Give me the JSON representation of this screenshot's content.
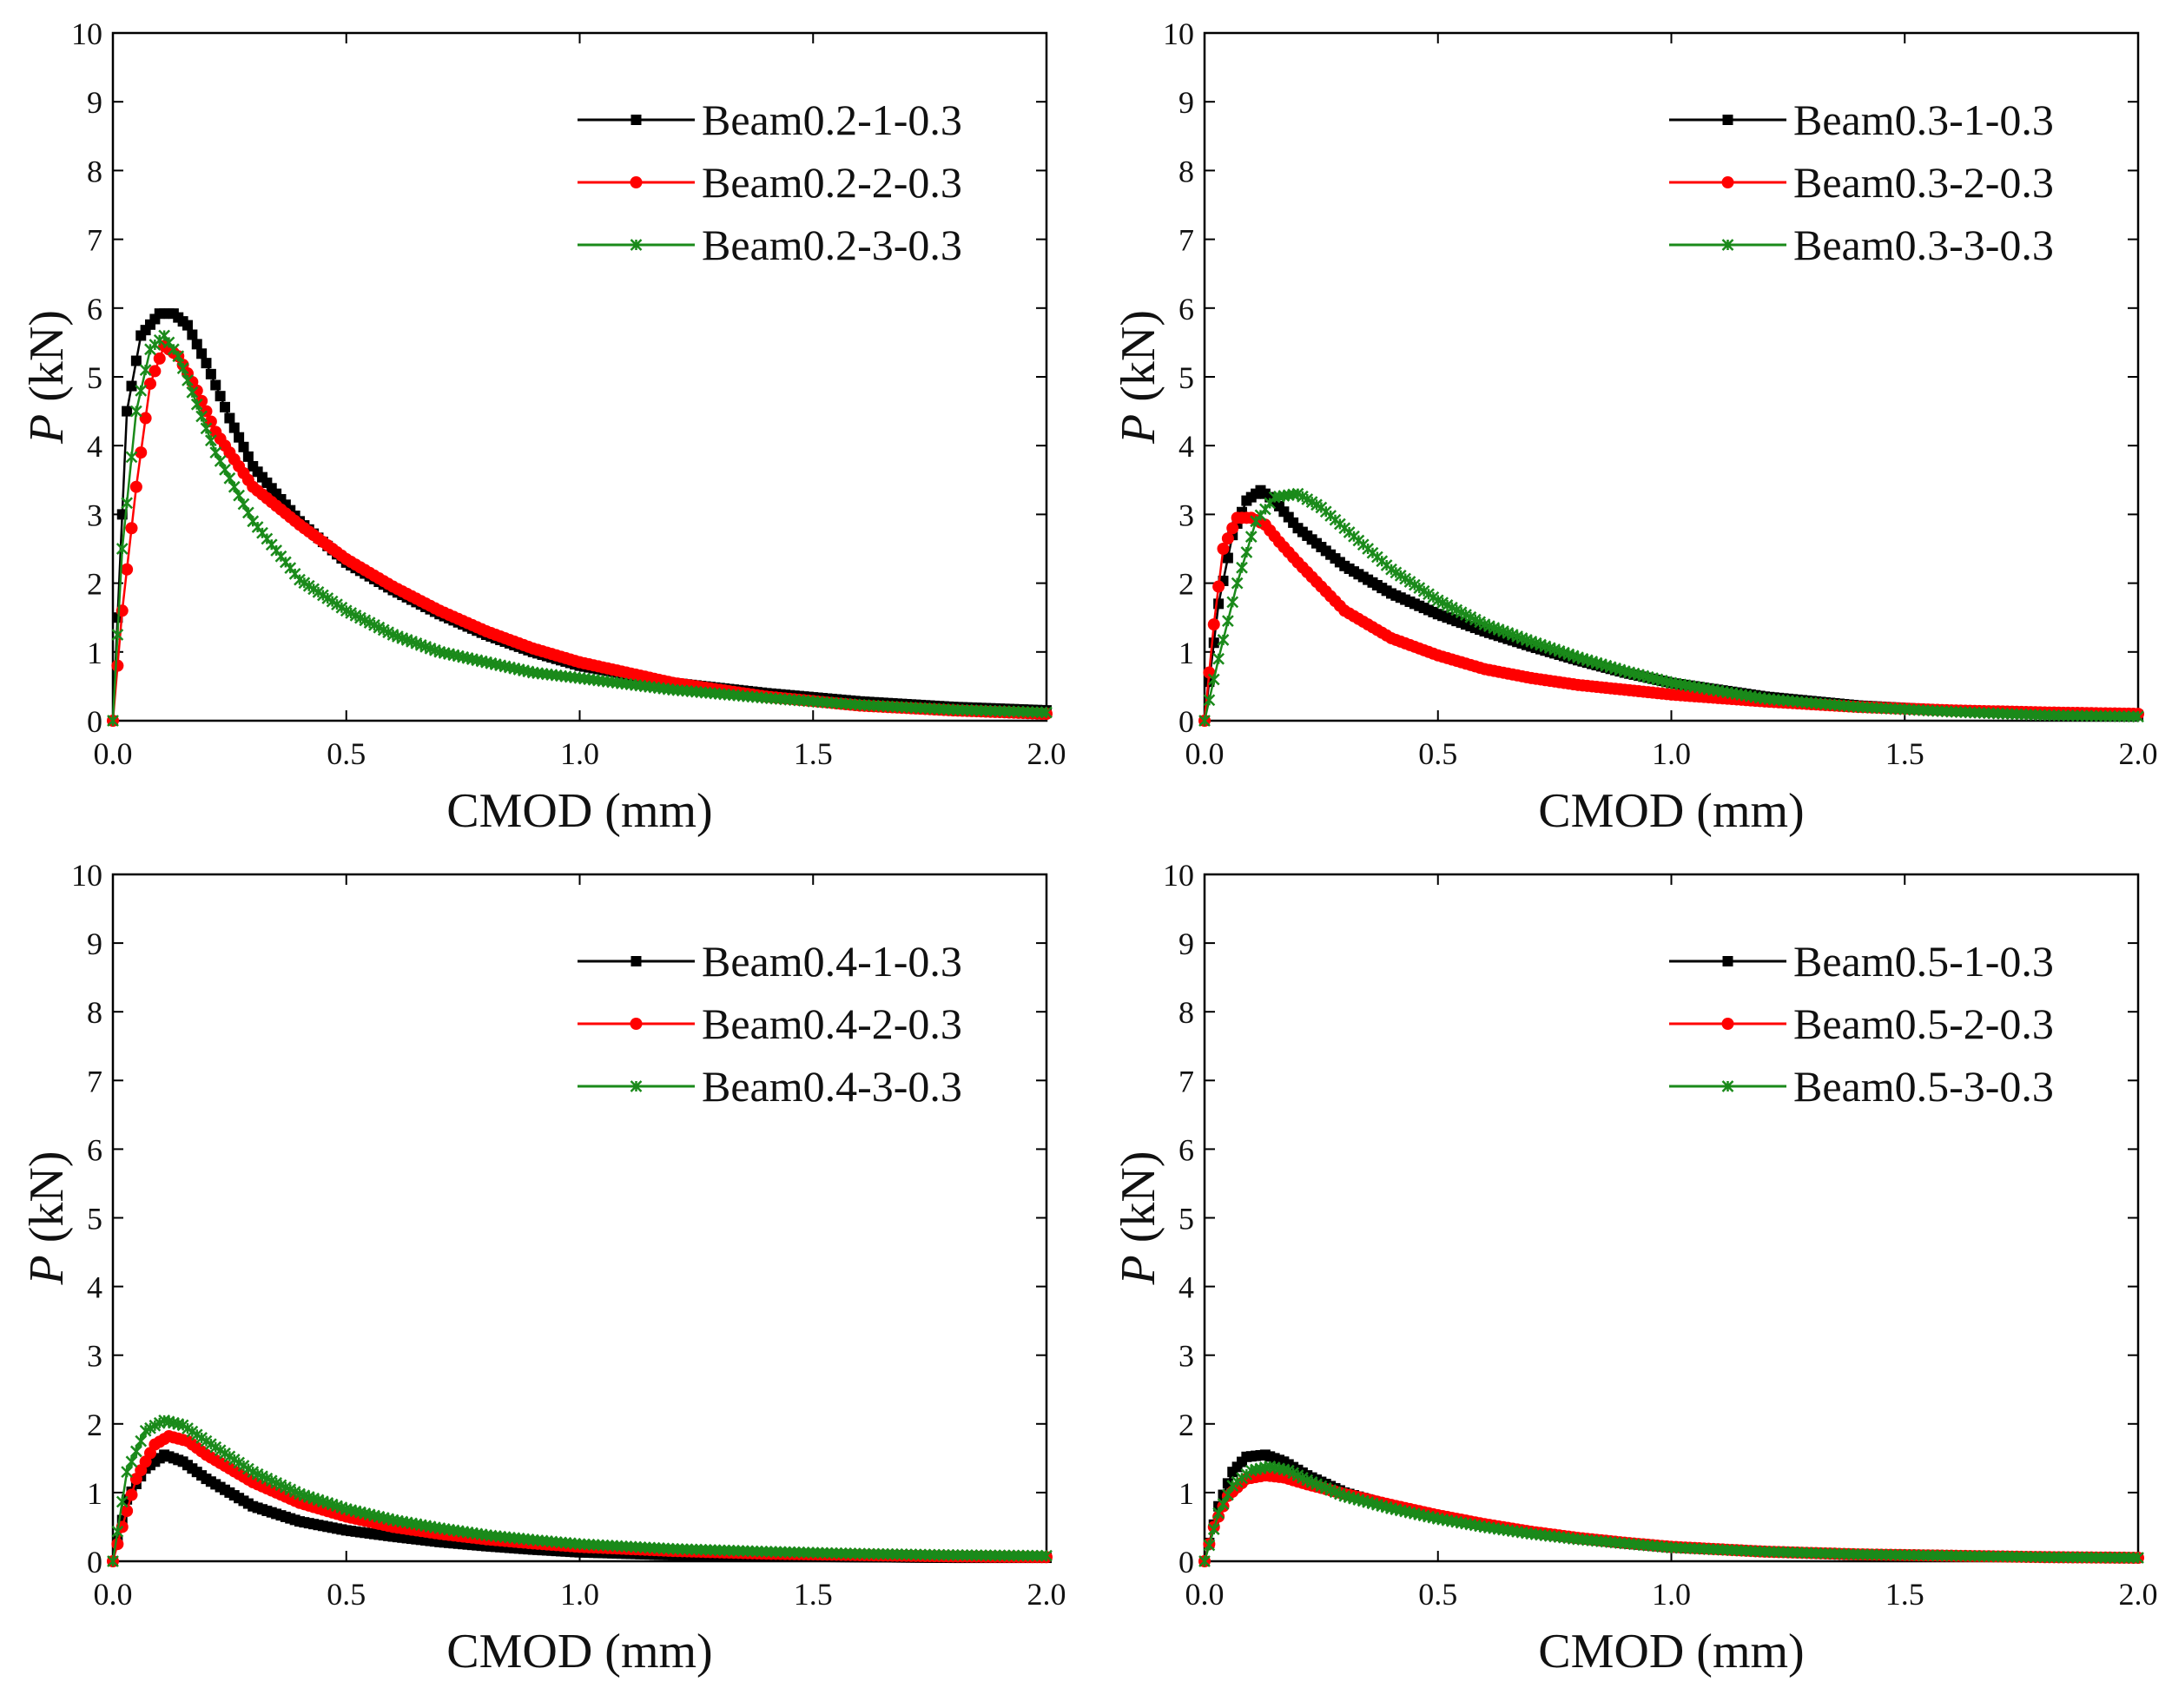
{
  "colors": {
    "black": "#000000",
    "red": "#ff0000",
    "green": "#1a8a1a"
  },
  "chart_data": [
    {
      "type": "line",
      "xlabel": "CMOD (mm)",
      "ylabel_italic": "P",
      "ylabel_unit": " (kN)",
      "xlim": [
        0,
        2.0
      ],
      "ylim": [
        0,
        10
      ],
      "xticks": [
        "0.0",
        "0.5",
        "1.0",
        "1.5",
        "2.0"
      ],
      "yticks": [
        "0",
        "1",
        "2",
        "3",
        "4",
        "5",
        "6",
        "7",
        "8",
        "9",
        "10"
      ],
      "legend_position": "top-right",
      "series": [
        {
          "name": "Beam0.2-1-0.3",
          "color": "#000000",
          "marker": "square",
          "x": [
            0,
            0.03,
            0.06,
            0.1,
            0.13,
            0.16,
            0.2,
            0.25,
            0.3,
            0.4,
            0.5,
            0.6,
            0.7,
            0.8,
            0.9,
            1.0,
            1.2,
            1.4,
            1.6,
            1.8,
            2.0
          ],
          "y": [
            0,
            4.5,
            5.6,
            5.92,
            5.92,
            5.75,
            5.2,
            4.4,
            3.7,
            2.9,
            2.3,
            1.9,
            1.55,
            1.25,
            1.0,
            0.8,
            0.55,
            0.4,
            0.28,
            0.2,
            0.15
          ]
        },
        {
          "name": "Beam0.2-2-0.3",
          "color": "#ff0000",
          "marker": "circle",
          "x": [
            0,
            0.02,
            0.05,
            0.08,
            0.11,
            0.14,
            0.18,
            0.22,
            0.3,
            0.4,
            0.5,
            0.6,
            0.7,
            0.8,
            0.9,
            1.0,
            1.2,
            1.4,
            1.6,
            1.8,
            2.0
          ],
          "y": [
            0,
            1.6,
            3.4,
            4.9,
            5.45,
            5.3,
            4.8,
            4.2,
            3.4,
            2.85,
            2.35,
            1.95,
            1.6,
            1.3,
            1.05,
            0.85,
            0.55,
            0.35,
            0.22,
            0.15,
            0.1
          ]
        },
        {
          "name": "Beam0.2-3-0.3",
          "color": "#1a8a1a",
          "marker": "cross",
          "x": [
            0,
            0.02,
            0.05,
            0.08,
            0.11,
            0.14,
            0.18,
            0.22,
            0.3,
            0.4,
            0.5,
            0.6,
            0.7,
            0.8,
            0.9,
            1.0,
            1.2,
            1.4,
            1.6,
            1.8,
            2.0
          ],
          "y": [
            0,
            2.5,
            4.5,
            5.4,
            5.6,
            5.3,
            4.6,
            3.9,
            2.9,
            2.05,
            1.6,
            1.25,
            1.0,
            0.85,
            0.7,
            0.62,
            0.45,
            0.33,
            0.23,
            0.16,
            0.12
          ]
        }
      ]
    },
    {
      "type": "line",
      "xlabel": "CMOD (mm)",
      "ylabel_italic": "P",
      "ylabel_unit": " (kN)",
      "xlim": [
        0,
        2.0
      ],
      "ylim": [
        0,
        10
      ],
      "xticks": [
        "0.0",
        "0.5",
        "1.0",
        "1.5",
        "2.0"
      ],
      "yticks": [
        "0",
        "1",
        "2",
        "3",
        "4",
        "5",
        "6",
        "7",
        "8",
        "9",
        "10"
      ],
      "legend_position": "top-right",
      "series": [
        {
          "name": "Beam0.3-1-0.3",
          "color": "#000000",
          "marker": "square",
          "x": [
            0,
            0.03,
            0.06,
            0.09,
            0.12,
            0.15,
            0.2,
            0.3,
            0.4,
            0.5,
            0.6,
            0.7,
            0.8,
            0.9,
            1.0,
            1.2,
            1.4,
            1.6,
            1.8,
            2.0
          ],
          "y": [
            0,
            1.7,
            2.7,
            3.2,
            3.35,
            3.2,
            2.8,
            2.25,
            1.85,
            1.55,
            1.3,
            1.08,
            0.88,
            0.7,
            0.55,
            0.35,
            0.22,
            0.15,
            0.1,
            0.08
          ]
        },
        {
          "name": "Beam0.3-2-0.3",
          "color": "#ff0000",
          "marker": "circle",
          "x": [
            0,
            0.02,
            0.04,
            0.07,
            0.1,
            0.13,
            0.16,
            0.2,
            0.3,
            0.4,
            0.5,
            0.6,
            0.7,
            0.8,
            0.9,
            1.0,
            1.2,
            1.4,
            1.6,
            1.8,
            2.0
          ],
          "y": [
            0,
            1.4,
            2.5,
            2.95,
            2.95,
            2.85,
            2.6,
            2.3,
            1.6,
            1.2,
            0.95,
            0.75,
            0.62,
            0.52,
            0.45,
            0.38,
            0.28,
            0.2,
            0.15,
            0.12,
            0.1
          ]
        },
        {
          "name": "Beam0.3-3-0.3",
          "color": "#1a8a1a",
          "marker": "cross",
          "x": [
            0,
            0.03,
            0.07,
            0.11,
            0.15,
            0.2,
            0.25,
            0.3,
            0.4,
            0.5,
            0.6,
            0.7,
            0.8,
            0.9,
            1.0,
            1.2,
            1.4,
            1.6,
            1.8,
            2.0
          ],
          "y": [
            0,
            0.9,
            2.0,
            2.9,
            3.25,
            3.3,
            3.1,
            2.8,
            2.2,
            1.75,
            1.4,
            1.15,
            0.92,
            0.72,
            0.55,
            0.32,
            0.2,
            0.13,
            0.08,
            0.06
          ]
        }
      ]
    },
    {
      "type": "line",
      "xlabel": "CMOD (mm)",
      "ylabel_italic": "P",
      "ylabel_unit": " (kN)",
      "xlim": [
        0,
        2.0
      ],
      "ylim": [
        0,
        10
      ],
      "xticks": [
        "0.0",
        "0.5",
        "1.0",
        "1.5",
        "2.0"
      ],
      "yticks": [
        "0",
        "1",
        "2",
        "3",
        "4",
        "5",
        "6",
        "7",
        "8",
        "9",
        "10"
      ],
      "legend_position": "top-right",
      "series": [
        {
          "name": "Beam0.4-1-0.3",
          "color": "#000000",
          "marker": "square",
          "x": [
            0,
            0.03,
            0.07,
            0.11,
            0.15,
            0.2,
            0.3,
            0.4,
            0.5,
            0.6,
            0.7,
            0.8,
            0.9,
            1.0,
            1.2,
            1.4,
            1.6,
            1.8,
            2.0
          ],
          "y": [
            0,
            0.9,
            1.35,
            1.55,
            1.45,
            1.2,
            0.8,
            0.58,
            0.45,
            0.36,
            0.28,
            0.22,
            0.17,
            0.13,
            0.09,
            0.07,
            0.06,
            0.05,
            0.05
          ]
        },
        {
          "name": "Beam0.4-2-0.3",
          "color": "#ff0000",
          "marker": "circle",
          "x": [
            0,
            0.02,
            0.05,
            0.09,
            0.12,
            0.16,
            0.2,
            0.3,
            0.4,
            0.5,
            0.6,
            0.7,
            0.8,
            0.9,
            1.0,
            1.2,
            1.4,
            1.6,
            1.8,
            2.0
          ],
          "y": [
            0,
            0.5,
            1.2,
            1.7,
            1.82,
            1.75,
            1.55,
            1.15,
            0.85,
            0.65,
            0.5,
            0.4,
            0.32,
            0.26,
            0.21,
            0.15,
            0.11,
            0.09,
            0.07,
            0.06
          ]
        },
        {
          "name": "Beam0.4-3-0.3",
          "color": "#1a8a1a",
          "marker": "cross",
          "x": [
            0,
            0.03,
            0.07,
            0.11,
            0.15,
            0.2,
            0.3,
            0.4,
            0.5,
            0.6,
            0.7,
            0.8,
            0.9,
            1.0,
            1.2,
            1.4,
            1.6,
            1.8,
            2.0
          ],
          "y": [
            0,
            1.3,
            1.9,
            2.05,
            1.98,
            1.75,
            1.3,
            0.98,
            0.76,
            0.6,
            0.48,
            0.38,
            0.31,
            0.25,
            0.18,
            0.14,
            0.11,
            0.09,
            0.08
          ]
        }
      ]
    },
    {
      "type": "line",
      "xlabel": "CMOD (mm)",
      "ylabel_italic": "P",
      "ylabel_unit": " (kN)",
      "xlim": [
        0,
        2.0
      ],
      "ylim": [
        0,
        10
      ],
      "xticks": [
        "0.0",
        "0.5",
        "1.0",
        "1.5",
        "2.0"
      ],
      "yticks": [
        "0",
        "1",
        "2",
        "3",
        "4",
        "5",
        "6",
        "7",
        "8",
        "9",
        "10"
      ],
      "legend_position": "top-right",
      "series": [
        {
          "name": "Beam0.5-1-0.3",
          "color": "#000000",
          "marker": "square",
          "x": [
            0,
            0.03,
            0.06,
            0.09,
            0.13,
            0.17,
            0.22,
            0.3,
            0.4,
            0.5,
            0.6,
            0.7,
            0.8,
            0.9,
            1.0,
            1.2,
            1.4,
            1.6,
            1.8,
            2.0
          ],
          "y": [
            0,
            0.8,
            1.3,
            1.52,
            1.55,
            1.45,
            1.25,
            1.0,
            0.8,
            0.65,
            0.52,
            0.42,
            0.33,
            0.26,
            0.2,
            0.14,
            0.1,
            0.08,
            0.06,
            0.05
          ]
        },
        {
          "name": "Beam0.5-2-0.3",
          "color": "#ff0000",
          "marker": "circle",
          "x": [
            0,
            0.02,
            0.05,
            0.09,
            0.13,
            0.17,
            0.22,
            0.3,
            0.4,
            0.5,
            0.6,
            0.7,
            0.8,
            0.9,
            1.0,
            1.2,
            1.4,
            1.6,
            1.8,
            2.0
          ],
          "y": [
            0,
            0.5,
            0.95,
            1.2,
            1.25,
            1.22,
            1.12,
            0.98,
            0.82,
            0.67,
            0.54,
            0.43,
            0.34,
            0.27,
            0.21,
            0.14,
            0.1,
            0.08,
            0.06,
            0.05
          ]
        },
        {
          "name": "Beam0.5-3-0.3",
          "color": "#1a8a1a",
          "marker": "cross",
          "x": [
            0,
            0.03,
            0.06,
            0.1,
            0.14,
            0.18,
            0.22,
            0.3,
            0.4,
            0.5,
            0.6,
            0.7,
            0.8,
            0.9,
            1.0,
            1.2,
            1.4,
            1.6,
            1.8,
            2.0
          ],
          "y": [
            0,
            0.7,
            1.1,
            1.32,
            1.38,
            1.32,
            1.18,
            0.95,
            0.77,
            0.62,
            0.5,
            0.4,
            0.32,
            0.26,
            0.2,
            0.14,
            0.1,
            0.08,
            0.06,
            0.05
          ]
        }
      ]
    }
  ]
}
